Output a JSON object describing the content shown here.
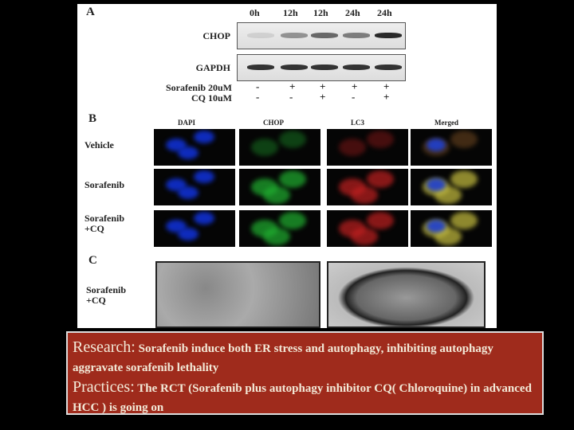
{
  "panel_a": {
    "label": "A",
    "timepoints": [
      "0h",
      "12h",
      "12h",
      "24h",
      "24h"
    ],
    "blots": [
      "CHOP",
      "GAPDH"
    ],
    "treatments": [
      {
        "name": "Sorafenib 20uM",
        "signs": [
          "-",
          "+",
          "+",
          "+",
          "+"
        ]
      },
      {
        "name": "CQ 10uM",
        "signs": [
          "-",
          "-",
          "+",
          "-",
          "+"
        ]
      }
    ]
  },
  "panel_b": {
    "label": "B",
    "channels": [
      "DAPI",
      "CHOP",
      "LC3",
      "Merged"
    ],
    "rows": [
      "Vehicle",
      "Sorafenib",
      "Sorafenib +CQ"
    ]
  },
  "panel_c": {
    "label": "C",
    "row": "Sorafenib +CQ"
  },
  "summary": {
    "research": {
      "heading": "Research:",
      "text": "Sorafenib induce both ER stress and autophagy, inhibiting autophagy aggravate sorafenib lethality"
    },
    "practices": {
      "heading": "Practices:",
      "text": "The RCT (Sorafenib plus autophagy inhibitor CQ( Chloroquine) in advanced HCC ) is going on"
    }
  }
}
